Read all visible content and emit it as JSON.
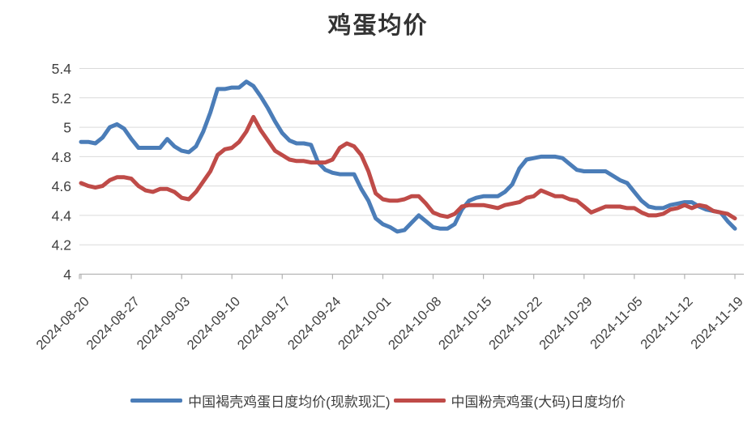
{
  "chart_data": {
    "type": "line",
    "title": "鸡蛋均价",
    "xlabel": "",
    "ylabel": "",
    "ylim": [
      4,
      5.4
    ],
    "y_ticks": [
      4,
      4.2,
      4.4,
      4.6,
      4.8,
      5,
      5.2,
      5.4
    ],
    "grid": "horizontal",
    "legend_position": "bottom",
    "points_per_tick": 7,
    "x_tick_labels": [
      "2024-08-20",
      "2024-08-27",
      "2024-09-03",
      "2024-09-10",
      "2024-09-17",
      "2024-09-24",
      "2024-10-01",
      "2024-10-08",
      "2024-10-15",
      "2024-10-22",
      "2024-10-29",
      "2024-11-05",
      "2024-11-12",
      "2024-11-19"
    ],
    "series": [
      {
        "name": "中国褐壳鸡蛋日度均价(现款现汇)",
        "color": "#4b7db8",
        "values": [
          4.9,
          4.9,
          4.89,
          4.93,
          5.0,
          5.02,
          4.99,
          4.92,
          4.86,
          4.86,
          4.86,
          4.86,
          4.92,
          4.87,
          4.84,
          4.83,
          4.87,
          4.97,
          5.1,
          5.26,
          5.26,
          5.27,
          5.27,
          5.31,
          5.28,
          5.21,
          5.13,
          5.04,
          4.96,
          4.91,
          4.89,
          4.89,
          4.88,
          4.76,
          4.71,
          4.69,
          4.68,
          4.68,
          4.68,
          4.58,
          4.5,
          4.38,
          4.34,
          4.32,
          4.29,
          4.3,
          4.35,
          4.4,
          4.36,
          4.32,
          4.31,
          4.31,
          4.34,
          4.44,
          4.5,
          4.52,
          4.53,
          4.53,
          4.53,
          4.56,
          4.61,
          4.72,
          4.78,
          4.79,
          4.8,
          4.8,
          4.8,
          4.79,
          4.75,
          4.71,
          4.7,
          4.7,
          4.7,
          4.7,
          4.67,
          4.64,
          4.62,
          4.56,
          4.5,
          4.46,
          4.45,
          4.45,
          4.47,
          4.48,
          4.49,
          4.49,
          4.46,
          4.44,
          4.43,
          4.42,
          4.36,
          4.31
        ]
      },
      {
        "name": "中国粉壳鸡蛋(大码)日度均价",
        "color": "#bf4b48",
        "values": [
          4.62,
          4.6,
          4.59,
          4.6,
          4.64,
          4.66,
          4.66,
          4.65,
          4.6,
          4.57,
          4.56,
          4.58,
          4.58,
          4.56,
          4.52,
          4.51,
          4.56,
          4.63,
          4.7,
          4.81,
          4.85,
          4.86,
          4.9,
          4.97,
          5.07,
          4.98,
          4.91,
          4.84,
          4.81,
          4.78,
          4.77,
          4.77,
          4.76,
          4.76,
          4.76,
          4.78,
          4.86,
          4.89,
          4.87,
          4.81,
          4.7,
          4.55,
          4.51,
          4.5,
          4.5,
          4.51,
          4.53,
          4.53,
          4.48,
          4.42,
          4.4,
          4.39,
          4.41,
          4.46,
          4.47,
          4.47,
          4.47,
          4.46,
          4.45,
          4.47,
          4.48,
          4.49,
          4.52,
          4.53,
          4.57,
          4.55,
          4.53,
          4.53,
          4.51,
          4.5,
          4.46,
          4.42,
          4.44,
          4.46,
          4.46,
          4.46,
          4.45,
          4.45,
          4.42,
          4.4,
          4.4,
          4.41,
          4.44,
          4.45,
          4.47,
          4.45,
          4.47,
          4.46,
          4.43,
          4.42,
          4.41,
          4.38
        ]
      }
    ],
    "colors": {
      "gridline": "#dadada",
      "axis": "#b3b3b3",
      "tick_text": "#404040",
      "title_text": "#333333"
    }
  }
}
